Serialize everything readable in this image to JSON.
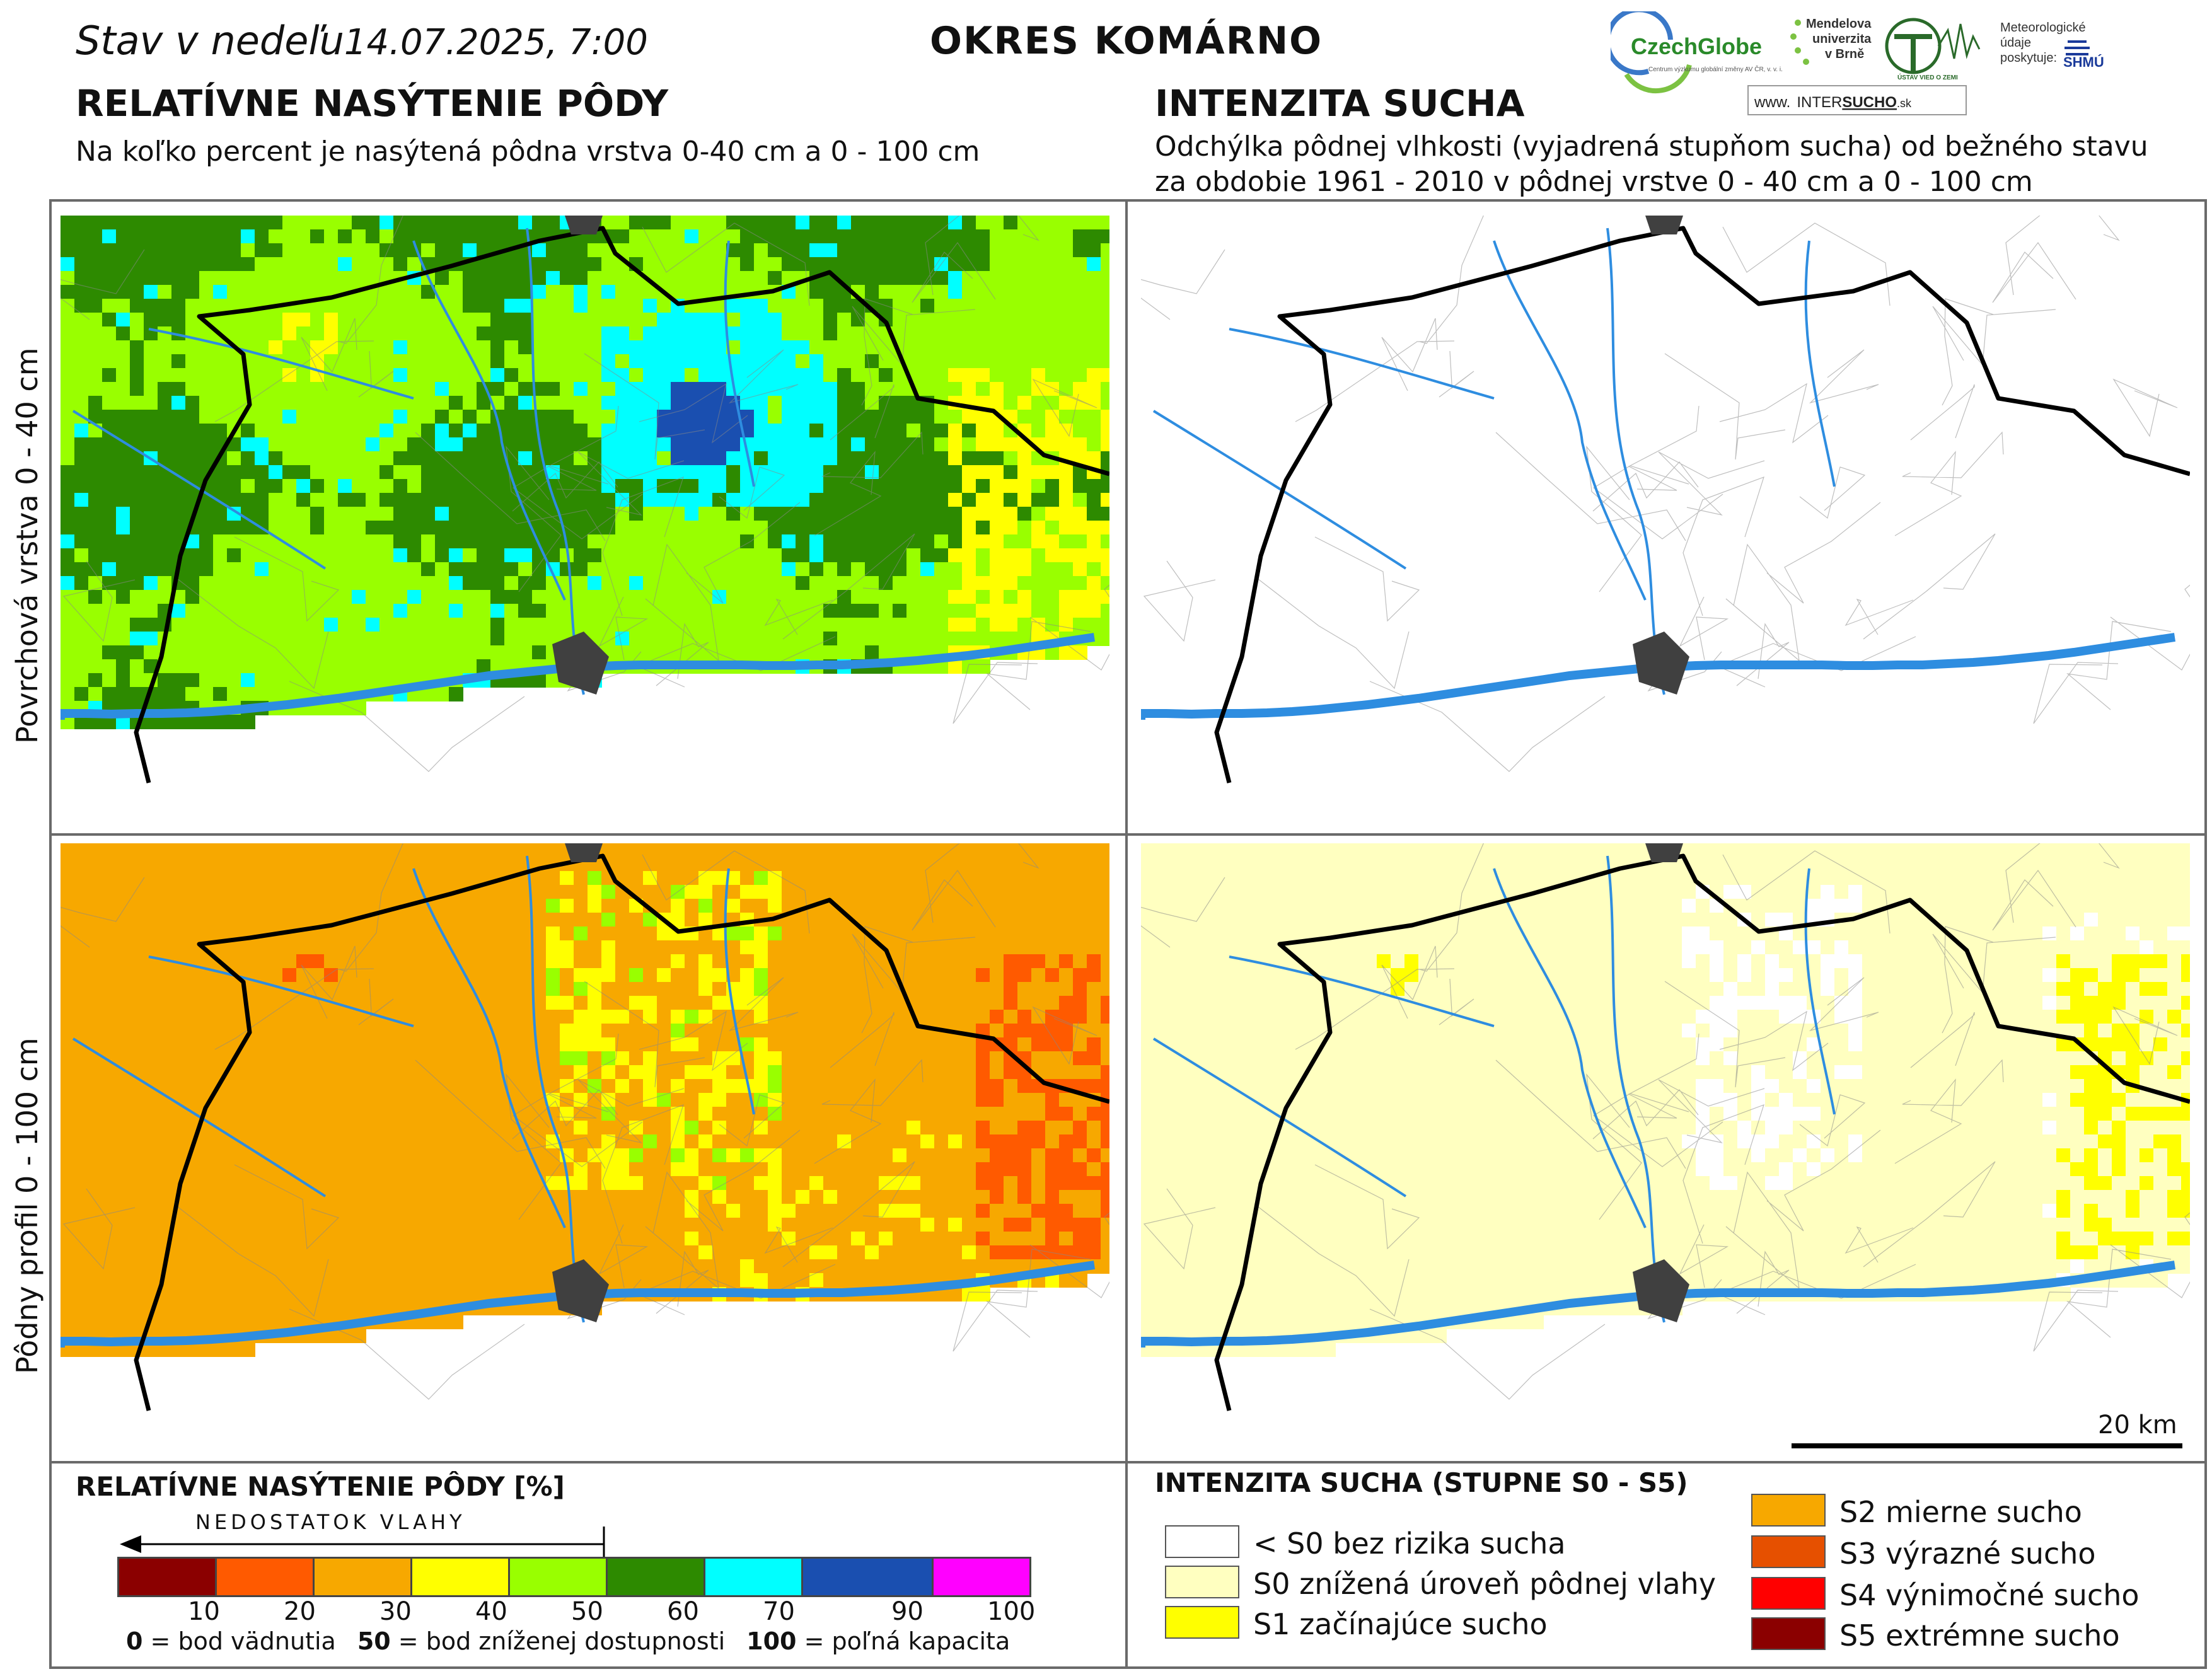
{
  "header": {
    "date_prefix": "Stav  v  nedeľu",
    "date_value": "14.07.2025, 7:00",
    "district": "OKRES  KOMÁRNO",
    "left_title": "RELATÍVNE NASÝTENIE PÔDY",
    "left_subtitle": "Na koľko percent je nasýtená pôdna vrstva 0-40 cm a 0 - 100 cm",
    "right_title": "INTENZITA SUCHA",
    "right_subtitle_1": "Odchýlka pôdnej vlhkosti (vyjadrená stupňom sucha) od bežného stavu",
    "right_subtitle_2": "za obdobie 1961 - 2010 v pôdnej vrstve 0 - 40 cm a 0 - 100 cm"
  },
  "logos": {
    "czechglobe": "CzechGlobe",
    "czechglobe_small": "Centrum výzkumu globální změny AV ČR, v. v. i.",
    "mendelu_1": "Mendelova",
    "mendelu_2": "univerzita",
    "mendelu_3": "v Brně",
    "ustav": "ÚSTAV VIED O ZEMI",
    "meteo_1": "Meteorologické",
    "meteo_2": "údaje",
    "meteo_3": "poskytuje:",
    "shmu": "SHMÚ",
    "website_prefix": "www.",
    "website_a": "INTER",
    "website_b": "SUCHO",
    "website_c": ".sk"
  },
  "row_labels": {
    "top": "Povrchová vrstva 0 - 40 cm",
    "bottom": "Pôdny profil 0 - 100 cm"
  },
  "scale_bar": {
    "label": "20 km"
  },
  "saturation_legend": {
    "title": "RELATÍVNE NASÝTENIE PÔDY [%]",
    "deficit_label": "NEDOSTATOK VLAHY",
    "classes": [
      {
        "upper": "10",
        "color": "#8b0000"
      },
      {
        "upper": "20",
        "color": "#ff5a00"
      },
      {
        "upper": "30",
        "color": "#f7a800"
      },
      {
        "upper": "40",
        "color": "#ffff00"
      },
      {
        "upper": "50",
        "color": "#99ff00"
      },
      {
        "upper": "60",
        "color": "#2d8a00"
      },
      {
        "upper": "70",
        "color": "#00ffff"
      },
      {
        "upper": "90",
        "color": "#1a4fb0"
      },
      {
        "upper": "100",
        "color": "#ff00ff"
      }
    ],
    "note_0_num": "0",
    "note_0_text": " = bod vädnutia",
    "note_50_num": "50",
    "note_50_text": " = bod zníženej dostupnosti",
    "note_100_num": "100",
    "note_100_text": " = poľná kapacita"
  },
  "drought_legend": {
    "title": "INTENZITA SUCHA (STUPNE S0 - S5)",
    "items": [
      {
        "label": "< S0 bez rizika sucha",
        "color": "#ffffff"
      },
      {
        "label": "S0 znížená úroveň pôdnej vlahy",
        "color": "#ffffc0"
      },
      {
        "label": "S1 začínajúce sucho",
        "color": "#ffff00"
      },
      {
        "label": "S2 mierne sucho",
        "color": "#f7a800"
      },
      {
        "label": "S3 výrazné sucho",
        "color": "#e65000"
      },
      {
        "label": "S4 výnimočné sucho",
        "color": "#ff0000"
      },
      {
        "label": "S5 extrémne sucho",
        "color": "#8b0000"
      }
    ]
  },
  "colors": {
    "river": "#2e8de0",
    "border": "#000000",
    "town": "#404040",
    "frame": "#6a6a6a"
  }
}
